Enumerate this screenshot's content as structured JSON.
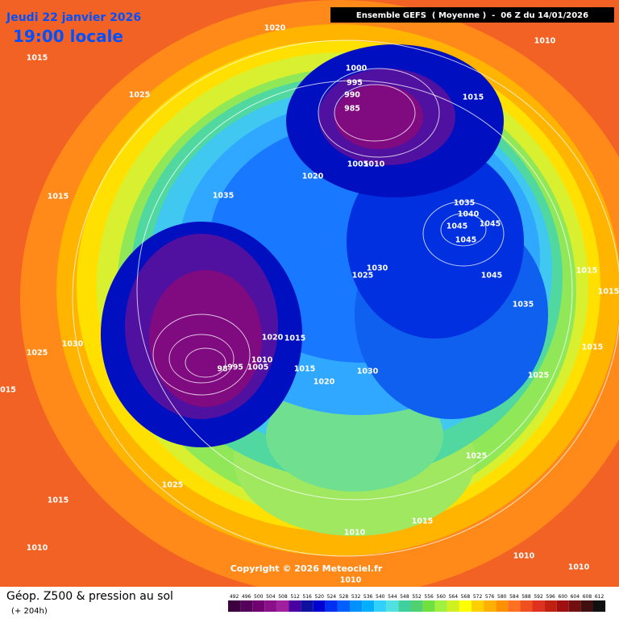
{
  "header": {
    "date": "Jeudi 22 janvier 2026",
    "time": "19:00 locale",
    "run": "Ensemble GEFS  ( Moyenne )  -  06 Z du 14/01/2026"
  },
  "isobar_labels": [
    "1020",
    "1015",
    "1010",
    "1025",
    "1000",
    "995",
    "990",
    "985",
    "1015",
    "1020",
    "1005",
    "1010",
    "1015",
    "1035",
    "1035",
    "1040",
    "1045",
    "1045",
    "1045",
    "1030",
    "1025",
    "1015",
    "1015",
    "1045",
    "1035",
    "1020",
    "1015",
    "1030",
    "1025",
    "1010",
    "1005",
    "995",
    "98",
    "1015",
    "1030",
    "1015",
    "1020",
    "1025",
    "015",
    "1025",
    "1025",
    "1015",
    "1015",
    "1010",
    "1010",
    "1010",
    "1010",
    "1010"
  ],
  "copyright": "Copyright © 2026 Meteociel.fr",
  "footer": {
    "title": "Géop. Z500 & pression au sol",
    "lead": "(+ 204h)"
  },
  "scale": {
    "values": [
      492,
      496,
      500,
      504,
      508,
      512,
      516,
      520,
      524,
      528,
      532,
      536,
      540,
      544,
      548,
      552,
      556,
      560,
      564,
      568,
      572,
      576,
      580,
      584,
      588,
      592,
      596,
      600,
      604,
      608,
      612
    ],
    "colors": [
      "#3c0040",
      "#55005a",
      "#700070",
      "#8a108a",
      "#a020a0",
      "#4a00a0",
      "#1010a0",
      "#0000d0",
      "#0030f0",
      "#0060ff",
      "#0090ff",
      "#00b0ff",
      "#30d0ff",
      "#50e0e0",
      "#40d0a0",
      "#50d070",
      "#70e040",
      "#a0f040",
      "#d0f020",
      "#ffff00",
      "#ffd000",
      "#ffb000",
      "#ff9000",
      "#ff7020",
      "#f05020",
      "#e03020",
      "#c02010",
      "#a01010",
      "#701010",
      "#401010",
      "#101010"
    ]
  }
}
